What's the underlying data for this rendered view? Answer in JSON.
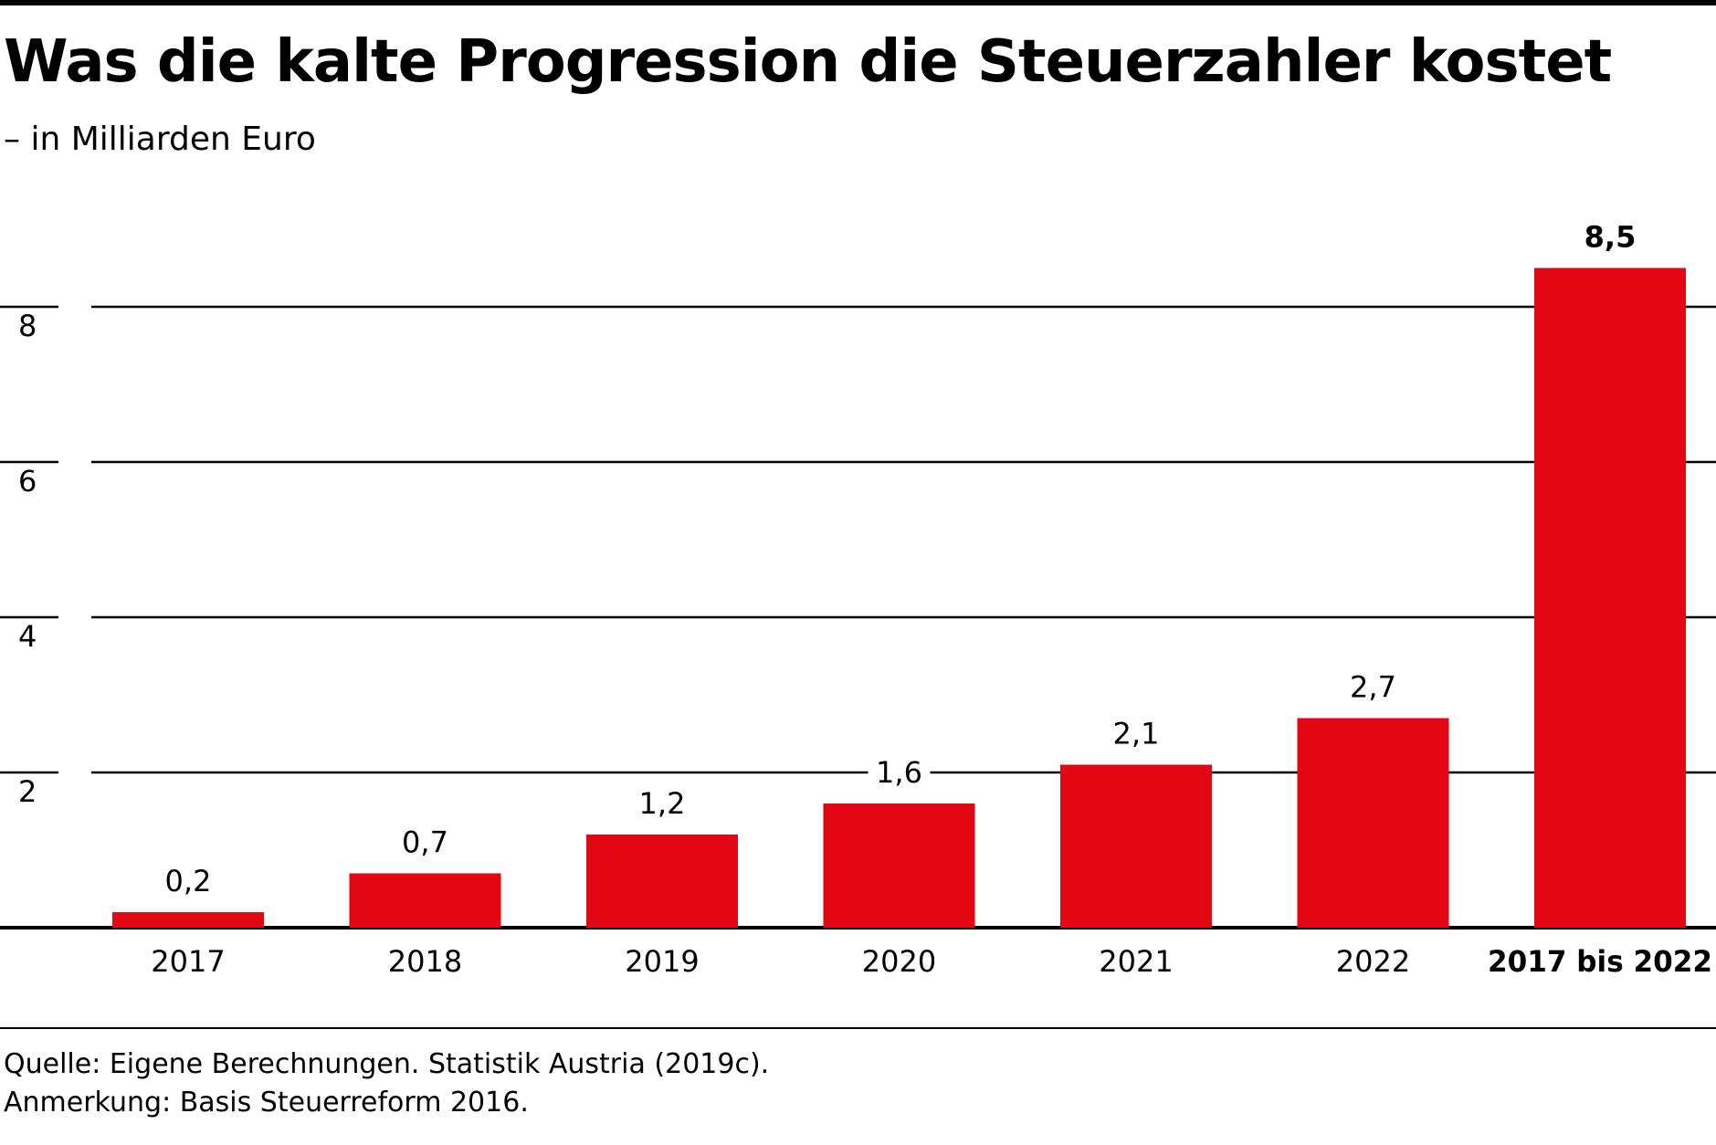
{
  "header": {
    "title": "Was die kalte Progression die Steuerzahler kostet",
    "subtitle": "– in Milliarden Euro"
  },
  "footer": {
    "source": "Quelle: Eigene Berechnungen. Statistik Austria (2019c).",
    "note": "Anmerkung: Basis Steuerreform 2016."
  },
  "colors": {
    "bar": "#E30613",
    "text": "#000000",
    "grid": "#000000",
    "background": "#FFFFFF"
  },
  "chart_data": {
    "type": "bar",
    "title": "Was die kalte Progression die Steuerzahler kostet",
    "subtitle": "– in Milliarden Euro",
    "xlabel": "",
    "ylabel": "",
    "categories": [
      "2017",
      "2018",
      "2019",
      "2020",
      "2021",
      "2022",
      "2017 bis 2022"
    ],
    "values": [
      0.2,
      0.7,
      1.2,
      1.6,
      2.1,
      2.7,
      8.5
    ],
    "value_labels": [
      "0,2",
      "0,7",
      "1,2",
      "1,6",
      "2,1",
      "2,7",
      "8,5"
    ],
    "highlight_category": "2017 bis 2022",
    "yticks": [
      2,
      4,
      6,
      8
    ],
    "ylim": [
      0,
      8.5
    ],
    "grid": true,
    "legend": "none"
  }
}
